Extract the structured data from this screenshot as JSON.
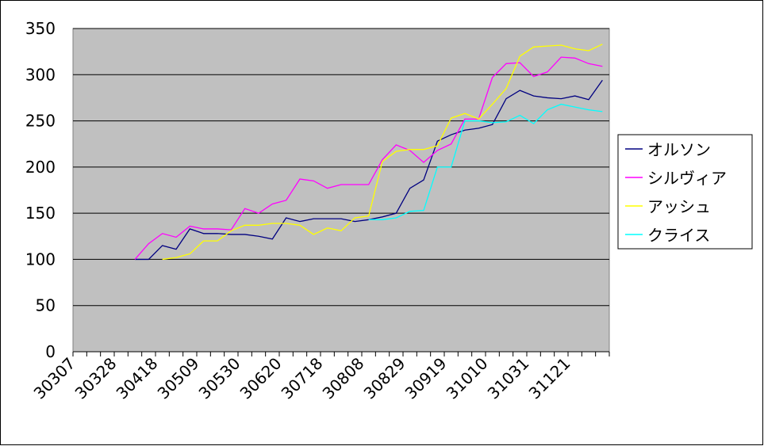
{
  "chart_data": {
    "type": "line",
    "categories": [
      "30307",
      null,
      null,
      "30328",
      null,
      null,
      "30418",
      null,
      null,
      "30509",
      null,
      null,
      "30530",
      null,
      null,
      "30620",
      null,
      null,
      "30718",
      null,
      null,
      "30808",
      null,
      null,
      "30829",
      null,
      null,
      "30919",
      null,
      null,
      "31010",
      null,
      null,
      "31031",
      null,
      null,
      "31121",
      null,
      null
    ],
    "ylim": [
      0,
      350
    ],
    "yticks": [
      0,
      50,
      100,
      150,
      200,
      250,
      300,
      350
    ],
    "grid": true,
    "legend": "right",
    "series": [
      {
        "name": "オルソン",
        "color": "#000080",
        "values": [
          null,
          null,
          null,
          null,
          100,
          100,
          115,
          111,
          133,
          128,
          128,
          127,
          127,
          125,
          122,
          145,
          141,
          144,
          144,
          144,
          141,
          143,
          146,
          150,
          177,
          186,
          228,
          235,
          240,
          242,
          246,
          274,
          283,
          277,
          275,
          274,
          277,
          273,
          294
        ]
      },
      {
        "name": "シルヴィア",
        "color": "#ff00ff",
        "values": [
          null,
          null,
          null,
          null,
          100,
          117,
          128,
          124,
          136,
          133,
          133,
          132,
          155,
          150,
          160,
          164,
          187,
          185,
          177,
          181,
          181,
          181,
          208,
          224,
          218,
          205,
          218,
          225,
          252,
          252,
          297,
          312,
          313,
          298,
          303,
          319,
          318,
          312,
          309
        ]
      },
      {
        "name": "アッシュ",
        "color": "#ffff00",
        "values": [
          null,
          null,
          null,
          null,
          null,
          null,
          100,
          102,
          106,
          120,
          120,
          131,
          137,
          137,
          139,
          139,
          137,
          127,
          134,
          131,
          145,
          147,
          206,
          217,
          219,
          219,
          223,
          253,
          258,
          252,
          268,
          285,
          320,
          330,
          331,
          332,
          328,
          326,
          333
        ]
      },
      {
        "name": "クライス",
        "color": "#00ffff",
        "values": [
          null,
          null,
          null,
          null,
          null,
          null,
          null,
          null,
          null,
          null,
          null,
          null,
          null,
          null,
          null,
          null,
          null,
          null,
          null,
          null,
          null,
          143,
          143,
          145,
          152,
          153,
          200,
          200,
          250,
          250,
          248,
          249,
          256,
          247,
          262,
          268,
          265,
          262,
          260
        ]
      }
    ]
  }
}
